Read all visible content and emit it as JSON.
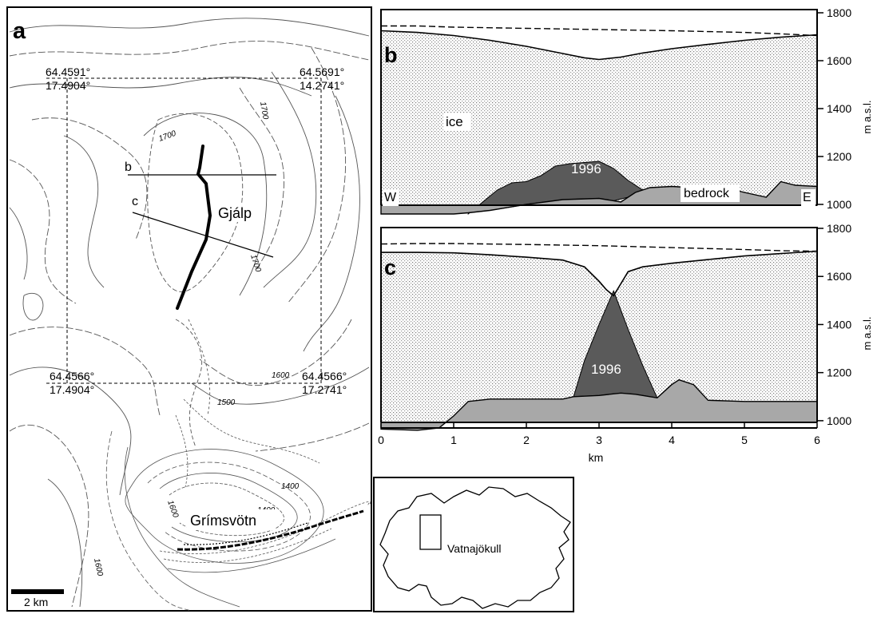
{
  "panel_a": {
    "letter": "a",
    "corners": [
      {
        "lat": "64.4591°",
        "lon": "17.4904°"
      },
      {
        "lat": "64.5691°",
        "lon": "14.2741°"
      },
      {
        "lat": "64.4566°",
        "lon": "17.4904°"
      },
      {
        "lat": "64.4566°",
        "lon": "17.2741°"
      }
    ],
    "contour_labels": [
      "1700",
      "1700",
      "1700",
      "1600",
      "1500",
      "1600",
      "1400",
      "1400",
      "1600"
    ],
    "profile_lines": [
      "b",
      "c"
    ],
    "place_names": [
      "Gjálp",
      "Grímsvötn"
    ],
    "scale_bar": "2 km"
  },
  "chart_data": [
    {
      "type": "area",
      "panel": "b",
      "labels": {
        "material_ice": "ice",
        "eruption": "1996",
        "material_rock": "bedrock",
        "west": "W",
        "east": "E"
      },
      "ylabel": "m a.s.l.",
      "ylim": [
        900,
        1800
      ],
      "yticks": [
        1000,
        1200,
        1400,
        1600,
        1800
      ],
      "xlim": [
        0,
        6
      ],
      "series": [
        {
          "role": "pre-eruption surface",
          "style": "dashed",
          "x": [
            0,
            0.5,
            1,
            2,
            3,
            4,
            5,
            5.5,
            6
          ],
          "y": [
            1745,
            1745,
            1740,
            1735,
            1730,
            1725,
            1718,
            1712,
            1705
          ]
        },
        {
          "role": "ice surface",
          "x": [
            0,
            0.5,
            1,
            1.5,
            2,
            2.5,
            2.8,
            3,
            3.3,
            3.6,
            4,
            4.5,
            5,
            5.5,
            6
          ],
          "y": [
            1725,
            1718,
            1705,
            1685,
            1660,
            1630,
            1612,
            1605,
            1615,
            1632,
            1650,
            1668,
            1685,
            1698,
            1708
          ]
        },
        {
          "role": "1996 ridge top",
          "x": [
            1.2,
            1.4,
            1.6,
            1.8,
            2.0,
            2.2,
            2.4,
            2.6,
            2.8,
            3.0,
            3.2,
            3.4,
            3.6
          ],
          "y": [
            960,
            1010,
            1060,
            1090,
            1095,
            1120,
            1160,
            1170,
            1175,
            1180,
            1150,
            1100,
            1060
          ]
        },
        {
          "role": "bedrock surface",
          "x": [
            0,
            0.5,
            1.0,
            1.2,
            1.5,
            2.0,
            2.5,
            3.0,
            3.3,
            3.5,
            3.7,
            4.0,
            4.4,
            4.8,
            5.0,
            5.3,
            5.5,
            5.7,
            6.0
          ],
          "y": [
            960,
            960,
            960,
            965,
            975,
            1000,
            1020,
            1025,
            1010,
            1050,
            1070,
            1075,
            1068,
            1065,
            1050,
            1030,
            1095,
            1080,
            1075
          ]
        }
      ]
    },
    {
      "type": "area",
      "panel": "c",
      "label": "1996",
      "ylabel": "m a.s.l.",
      "ylim": [
        900,
        1800
      ],
      "yticks": [
        1000,
        1200,
        1400,
        1600,
        1800
      ],
      "xlim": [
        0,
        6
      ],
      "xticks": [
        0,
        1,
        2,
        3,
        4,
        5,
        6
      ],
      "xlabel": "km",
      "series": [
        {
          "role": "pre-eruption surface",
          "style": "dashed",
          "x": [
            0,
            0.5,
            1,
            2,
            3,
            4,
            5,
            5.5,
            6
          ],
          "y": [
            1735,
            1737,
            1737,
            1733,
            1728,
            1720,
            1712,
            1707,
            1705
          ]
        },
        {
          "role": "ice surface",
          "x": [
            0,
            0.5,
            1,
            1.5,
            2,
            2.5,
            2.8,
            3.0,
            3.1,
            3.2,
            3.3,
            3.4,
            3.6,
            4.0,
            4.5,
            5.0,
            5.5,
            6.0
          ],
          "y": [
            1700,
            1700,
            1698,
            1690,
            1680,
            1668,
            1640,
            1580,
            1545,
            1520,
            1570,
            1620,
            1640,
            1655,
            1670,
            1685,
            1695,
            1705
          ]
        },
        {
          "role": "1996 ridge",
          "x": [
            2.65,
            2.8,
            3.0,
            3.2,
            3.4,
            3.6,
            3.8
          ],
          "y": [
            1100,
            1250,
            1400,
            1540,
            1380,
            1230,
            1095
          ]
        },
        {
          "role": "bedrock surface",
          "x": [
            0,
            0.5,
            0.8,
            1.0,
            1.2,
            1.5,
            2.0,
            2.5,
            2.65,
            3.0,
            3.3,
            3.5,
            3.8,
            4.0,
            4.1,
            4.3,
            4.5,
            5.0,
            6.0
          ],
          "y": [
            965,
            960,
            970,
            1020,
            1080,
            1090,
            1090,
            1090,
            1100,
            1105,
            1115,
            1110,
            1095,
            1150,
            1170,
            1150,
            1085,
            1080,
            1080
          ]
        }
      ]
    }
  ],
  "inset": {
    "label": "Vatnajökull"
  }
}
